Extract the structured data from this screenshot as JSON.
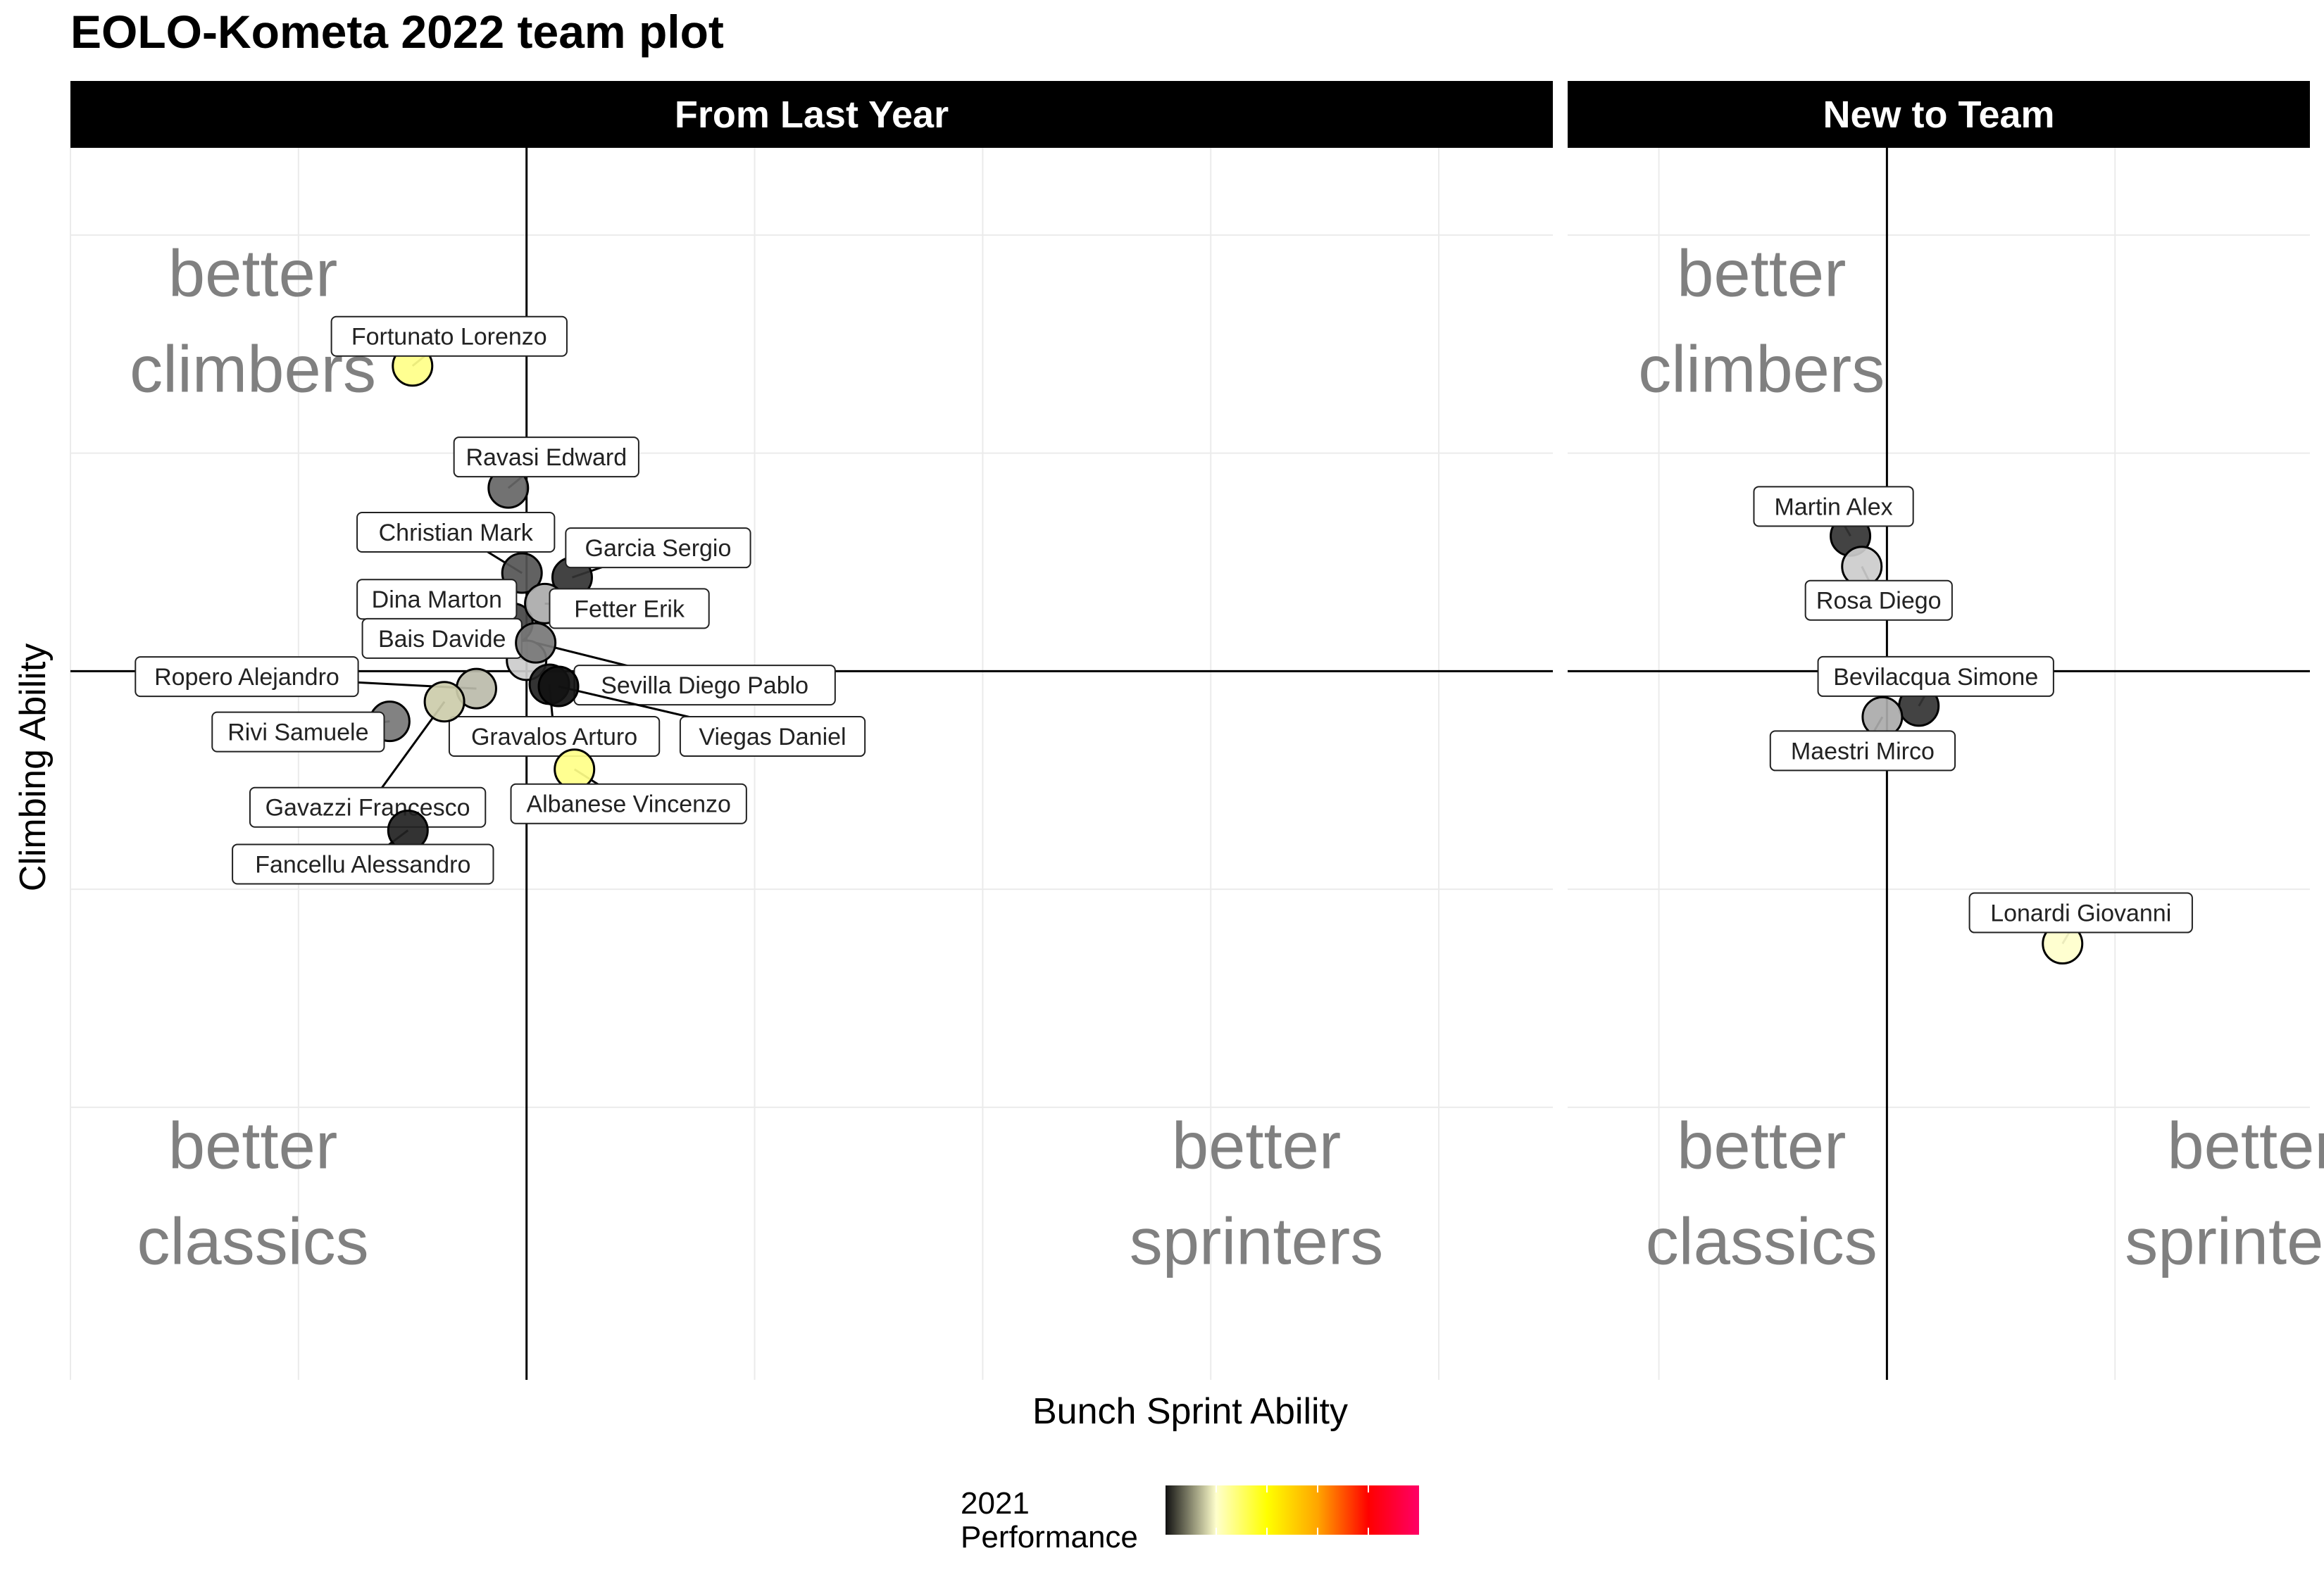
{
  "chart_data": {
    "type": "scatter",
    "title": "EOLO-Kometa 2022 team plot",
    "xlabel": "Bunch Sprint Ability",
    "ylabel": "Climbing Ability",
    "xlim": [
      -2.0,
      4.5
    ],
    "ylim": [
      -3.25,
      2.4
    ],
    "grid": true,
    "legend": {
      "title_line1": "2021",
      "title_line2": "Performance",
      "placement": "bottom",
      "gradient": [
        "#111111",
        "#ffffcc",
        "#ffff00",
        "#ffa500",
        "#ff0000",
        "#ff0066"
      ]
    },
    "quadrant_labels": {
      "top_left": [
        "better",
        "climbers"
      ],
      "bottom_left": [
        "better",
        "classics"
      ],
      "bottom_right": [
        "better",
        "sprinters"
      ]
    },
    "panels": [
      {
        "name": "From Last Year",
        "points": [
          {
            "label": "Fortunato Lorenzo",
            "x": -0.5,
            "y": 1.4,
            "color": "#ffff88"
          },
          {
            "label": "Ravasi Edward",
            "x": -0.08,
            "y": 0.84,
            "color": "#666666"
          },
          {
            "label": "Christian Mark",
            "x": -0.02,
            "y": 0.45,
            "color": "#555555"
          },
          {
            "label": "Garcia Sergio",
            "x": 0.2,
            "y": 0.43,
            "color": "#333333"
          },
          {
            "label": "Dina Marton",
            "x": -0.06,
            "y": 0.22,
            "color": "#444444"
          },
          {
            "label": "Fetter Erik",
            "x": 0.08,
            "y": 0.31,
            "color": "#aaaaaa"
          },
          {
            "label": "Bais Davide",
            "x": 0.0,
            "y": 0.05,
            "color": "#cccccc"
          },
          {
            "label": "Sevilla Diego Pablo",
            "x": 0.04,
            "y": 0.13,
            "color": "#777777"
          },
          {
            "label": "Ropero Alejandro",
            "x": -0.22,
            "y": -0.08,
            "color": "#bbbbaa"
          },
          {
            "label": "Gravalos Arturo",
            "x": 0.1,
            "y": -0.06,
            "color": "#222222"
          },
          {
            "label": "Viegas Daniel",
            "x": 0.14,
            "y": -0.07,
            "color": "#111111"
          },
          {
            "label": "Rivi Samuele",
            "x": -0.6,
            "y": -0.23,
            "color": "#777777"
          },
          {
            "label": "Gavazzi Francesco",
            "x": -0.36,
            "y": -0.14,
            "color": "#ccccaa"
          },
          {
            "label": "Albanese Vincenzo",
            "x": 0.21,
            "y": -0.45,
            "color": "#ffff88"
          },
          {
            "label": "Fancellu Alessandro",
            "x": -0.52,
            "y": -0.73,
            "color": "#222222"
          }
        ]
      },
      {
        "name": "New to Team",
        "points": [
          {
            "label": "Martin Alex",
            "x": -0.16,
            "y": 0.62,
            "color": "#333333"
          },
          {
            "label": "Rosa Diego",
            "x": -0.11,
            "y": 0.48,
            "color": "#cccccc"
          },
          {
            "label": "Bevilacqua Simone",
            "x": 0.14,
            "y": -0.16,
            "color": "#333333"
          },
          {
            "label": "Maestri Mirco",
            "x": -0.02,
            "y": -0.21,
            "color": "#aaaaaa"
          },
          {
            "label": "Lonardi Giovanni",
            "x": 0.77,
            "y": -1.25,
            "color": "#ffffcc"
          }
        ]
      }
    ]
  }
}
